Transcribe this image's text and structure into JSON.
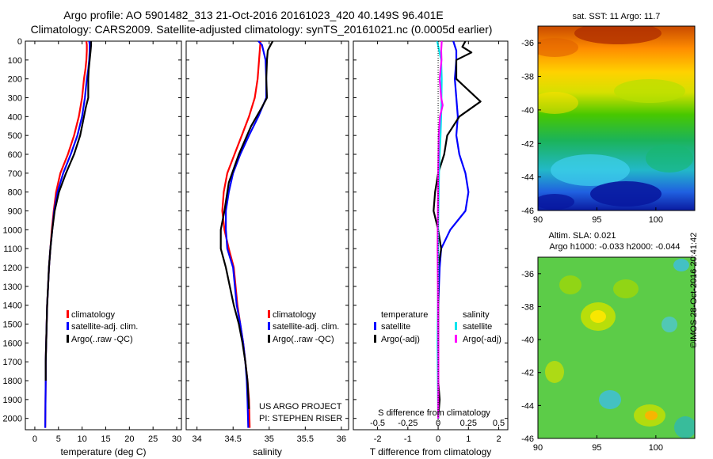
{
  "header": {
    "line1": "Argo profile: AO 5901482_313 21-Oct-2016 20161023_420 40.149S 96.401E",
    "line2": "Climatology: CARS2009. Satellite-adjusted climatology: synTS_20161021.nc (0.0005d earlier)"
  },
  "colors": {
    "climatology": "#ff0000",
    "satellite": "#0000ff",
    "argo": "#000000",
    "sal_satellite": "#00e5ee",
    "sal_argo": "#ff00ff"
  },
  "depth_axis": {
    "ticks": [
      0,
      100,
      200,
      300,
      400,
      500,
      600,
      700,
      800,
      900,
      1000,
      1100,
      1200,
      1300,
      1400,
      1500,
      1600,
      1700,
      1800,
      1900,
      2000
    ],
    "range": [
      0,
      2060
    ]
  },
  "panel_temp": {
    "xlabel": "temperature (deg C)",
    "xticks": [
      0,
      5,
      10,
      15,
      20,
      25,
      30
    ],
    "xlim": [
      -2,
      31
    ],
    "legend": [
      "climatology",
      "satellite-adj. clim.",
      "Argo(..raw -QC)"
    ]
  },
  "panel_sal": {
    "xlabel": "salinity",
    "xticks": [
      "34",
      "34.5",
      "35",
      "35.5",
      "36"
    ],
    "xlim": [
      33.85,
      36.1
    ],
    "legend": [
      "climatology",
      "satellite-adj. clim.",
      "Argo(..raw -QC)"
    ],
    "note1": "US ARGO PROJECT",
    "note2": "PI: STEPHEN RISER"
  },
  "panel_diff": {
    "xlabel": "T difference from climatology",
    "xticks": [
      "-2",
      "-1",
      "0",
      "1",
      "2"
    ],
    "xlim": [
      -2.8,
      2.3
    ],
    "top_label": "S difference from climatology",
    "top_ticks": [
      "-0.5",
      "-0.25",
      "0",
      "0.25",
      "0.5"
    ],
    "legend_temp_title": "temperature",
    "legend_sal_title": "salinity",
    "legend_temp": [
      "satellite",
      "Argo(-adj)"
    ],
    "legend_sal": [
      "satellite",
      "Argo(-adj)"
    ]
  },
  "map_sst": {
    "title": "sat. SST: 11 Argo: 11.7",
    "yticks": [
      "-36",
      "-38",
      "-40",
      "-42",
      "-44",
      "-46"
    ],
    "xticks": [
      "90",
      "95",
      "100"
    ]
  },
  "map_sla": {
    "title1": "Altim. SLA: 0.021",
    "title2": "Argo h1000: -0.033 h2000: -0.044",
    "yticks": [
      "-36",
      "-38",
      "-40",
      "-42",
      "-44",
      "-46"
    ],
    "xticks": [
      "90",
      "95",
      "100"
    ]
  },
  "credit": "©IMOS 28-Oct-2016 20:41:42",
  "chart_data": [
    {
      "type": "line",
      "title": "",
      "xlabel": "temperature (deg C)",
      "ylabel": "",
      "xlim": [
        -2,
        31
      ],
      "ylim": [
        2060,
        0
      ],
      "series": [
        {
          "name": "climatology",
          "x": [
            10.9,
            11.0,
            11.0,
            10.9,
            10.7,
            10.4,
            10.0,
            9.3,
            8.3,
            7.0,
            5.4,
            4.5,
            4.0,
            3.6,
            3.3,
            3.0,
            2.8,
            2.6,
            2.5,
            2.4,
            2.3,
            2.3,
            2.2
          ],
          "y": [
            0,
            20,
            50,
            100,
            150,
            200,
            300,
            400,
            500,
            600,
            700,
            800,
            900,
            1000,
            1100,
            1200,
            1300,
            1400,
            1500,
            1600,
            1700,
            1800,
            2050
          ]
        },
        {
          "name": "satellite-adj. clim.",
          "x": [
            11.5,
            11.6,
            11.6,
            11.5,
            11.3,
            11.0,
            10.6,
            10.0,
            9.0,
            7.6,
            6.0,
            4.8,
            4.1,
            3.7,
            3.3,
            3.0,
            2.8,
            2.6,
            2.5,
            2.4,
            2.3,
            2.3,
            2.2
          ],
          "y": [
            0,
            20,
            50,
            100,
            150,
            200,
            300,
            400,
            500,
            600,
            700,
            800,
            900,
            1000,
            1100,
            1200,
            1300,
            1400,
            1500,
            1600,
            1700,
            1800,
            2050
          ]
        },
        {
          "name": "Argo(..raw -QC)",
          "x": [
            11.9,
            11.9,
            11.8,
            11.6,
            11.4,
            11.3,
            11.3,
            10.8,
            9.6,
            8.3,
            6.6,
            5.1,
            4.2,
            3.7,
            3.3,
            3.0,
            2.8,
            2.6,
            2.5,
            2.4,
            2.3,
            2.3
          ],
          "y": [
            0,
            20,
            50,
            100,
            150,
            200,
            300,
            350,
            500,
            600,
            700,
            800,
            900,
            1000,
            1100,
            1200,
            1300,
            1400,
            1500,
            1600,
            1700,
            1800
          ]
        }
      ]
    },
    {
      "type": "line",
      "title": "",
      "xlabel": "salinity",
      "ylabel": "",
      "xlim": [
        33.85,
        36.1
      ],
      "ylim": [
        2060,
        0
      ],
      "series": [
        {
          "name": "climatology",
          "x": [
            34.88,
            34.87,
            34.86,
            34.84,
            34.8,
            34.72,
            34.62,
            34.52,
            34.42,
            34.37,
            34.35,
            34.38,
            34.44,
            34.51,
            34.56,
            34.6,
            34.64,
            34.67,
            34.7,
            34.72,
            34.73
          ],
          "y": [
            0,
            50,
            100,
            200,
            300,
            400,
            500,
            600,
            700,
            800,
            900,
            1000,
            1100,
            1200,
            1400,
            1500,
            1600,
            1700,
            1800,
            1900,
            2050
          ]
        },
        {
          "name": "satellite-adj. clim.",
          "x": [
            34.85,
            34.9,
            34.95,
            34.96,
            34.96,
            34.85,
            34.72,
            34.6,
            34.5,
            34.44,
            34.4,
            34.4,
            34.42,
            34.5,
            34.55,
            34.6,
            34.64,
            34.67,
            34.69,
            34.7,
            34.71
          ],
          "y": [
            0,
            20,
            100,
            200,
            300,
            400,
            500,
            600,
            700,
            800,
            900,
            1000,
            1100,
            1200,
            1400,
            1500,
            1600,
            1700,
            1800,
            1900,
            2050
          ]
        },
        {
          "name": "Argo(..raw -QC)",
          "x": [
            35.05,
            35.02,
            34.98,
            34.97,
            34.96,
            34.97,
            34.9,
            34.75,
            34.58,
            34.44,
            34.38,
            34.33,
            34.33,
            34.4,
            34.51,
            34.58,
            34.63,
            34.67,
            34.7,
            34.72
          ],
          "y": [
            0,
            20,
            50,
            100,
            200,
            300,
            350,
            450,
            600,
            750,
            900,
            1000,
            1100,
            1200,
            1400,
            1500,
            1600,
            1700,
            1800,
            1950
          ]
        }
      ]
    },
    {
      "type": "line",
      "title": "",
      "xlabel": "T difference from climatology",
      "ylabel": "",
      "xlim": [
        -2.8,
        2.3
      ],
      "ylim": [
        2060,
        0
      ],
      "series": [
        {
          "name": "temperature satellite",
          "x": [
            0.5,
            0.6,
            0.6,
            0.55,
            0.6,
            0.65,
            0.6,
            0.7,
            0.9,
            1.0,
            0.9,
            0.4,
            0.1,
            0.05,
            0.0,
            0.0,
            0.0,
            0.0,
            0.0,
            0.0
          ],
          "y": [
            0,
            50,
            100,
            200,
            300,
            400,
            500,
            600,
            700,
            800,
            900,
            1000,
            1100,
            1200,
            1400,
            1500,
            1600,
            1700,
            1800,
            2000
          ]
        },
        {
          "name": "temperature Argo(-adj)",
          "x": [
            0.9,
            0.8,
            1.1,
            0.6,
            0.6,
            1.4,
            0.7,
            0.3,
            0.2,
            0.0,
            -0.1,
            -0.15,
            0.0,
            0.1,
            0.0,
            0.0,
            0.0,
            0.0,
            0.0,
            0.0,
            0.05,
            0.0
          ],
          "y": [
            0,
            30,
            60,
            100,
            200,
            320,
            400,
            500,
            600,
            700,
            800,
            900,
            1000,
            1100,
            1200,
            1400,
            1500,
            1600,
            1700,
            1800,
            1900,
            2000
          ]
        },
        {
          "name": "salinity satellite",
          "x": [
            -0.03,
            0.02,
            0.1,
            0.12,
            0.11,
            0.1,
            0.08,
            0.05,
            0.03,
            0.02,
            0.01,
            0.0,
            0.0,
            -0.01,
            -0.02,
            -0.01,
            0.0
          ],
          "y": [
            0,
            40,
            100,
            200,
            300,
            400,
            500,
            600,
            700,
            800,
            900,
            1000,
            1200,
            1400,
            1600,
            1800,
            2000
          ]
        },
        {
          "name": "salinity Argo(-adj)",
          "x": [
            0.12,
            0.1,
            0.11,
            0.05,
            0.1,
            0.15,
            0.06,
            0.02,
            0.0,
            -0.01,
            -0.02,
            -0.01,
            0.0,
            0.01,
            0.0
          ],
          "y": [
            0,
            50,
            100,
            200,
            300,
            340,
            400,
            500,
            700,
            900,
            1100,
            1300,
            1500,
            1700,
            2000
          ]
        }
      ]
    }
  ]
}
